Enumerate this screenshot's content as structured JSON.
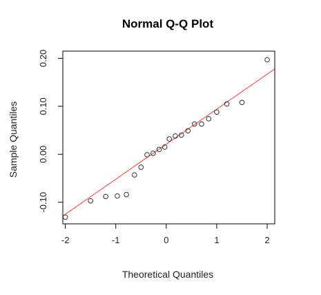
{
  "chart_data": {
    "type": "scatter",
    "title": "Normal Q-Q Plot",
    "xlabel": "Theoretical Quantiles",
    "ylabel": "Sample Quantiles",
    "xlim": [
      -2.05,
      2.15
    ],
    "ylim": [
      -0.145,
      0.215
    ],
    "x_ticks": [
      -2,
      -1,
      0,
      1,
      2
    ],
    "x_tick_labels": [
      "-2",
      "-1",
      "0",
      "1",
      "2"
    ],
    "y_ticks": [
      -0.1,
      0.0,
      0.1,
      0.2
    ],
    "y_tick_labels": [
      "-0.10",
      "0.00",
      "0.10",
      "0.20"
    ],
    "grid": false,
    "colors": {
      "points": "#333333",
      "reference_line": "#ff3b3b",
      "frame": "#000000"
    },
    "points": [
      {
        "x": -2.0,
        "y": -0.131
      },
      {
        "x": -1.5,
        "y": -0.097
      },
      {
        "x": -1.2,
        "y": -0.088
      },
      {
        "x": -0.97,
        "y": -0.087
      },
      {
        "x": -0.79,
        "y": -0.084
      },
      {
        "x": -0.63,
        "y": -0.043
      },
      {
        "x": -0.5,
        "y": -0.027
      },
      {
        "x": -0.38,
        "y": -0.001
      },
      {
        "x": -0.26,
        "y": 0.002
      },
      {
        "x": -0.14,
        "y": 0.01
      },
      {
        "x": -0.03,
        "y": 0.015
      },
      {
        "x": 0.06,
        "y": 0.032
      },
      {
        "x": 0.18,
        "y": 0.038
      },
      {
        "x": 0.3,
        "y": 0.04
      },
      {
        "x": 0.43,
        "y": 0.049
      },
      {
        "x": 0.56,
        "y": 0.063
      },
      {
        "x": 0.7,
        "y": 0.063
      },
      {
        "x": 0.84,
        "y": 0.074
      },
      {
        "x": 1.0,
        "y": 0.088
      },
      {
        "x": 1.2,
        "y": 0.105
      },
      {
        "x": 1.5,
        "y": 0.108
      },
      {
        "x": 2.0,
        "y": 0.197
      }
    ],
    "reference_line": {
      "intercept": 0.021,
      "slope": 0.073
    }
  }
}
